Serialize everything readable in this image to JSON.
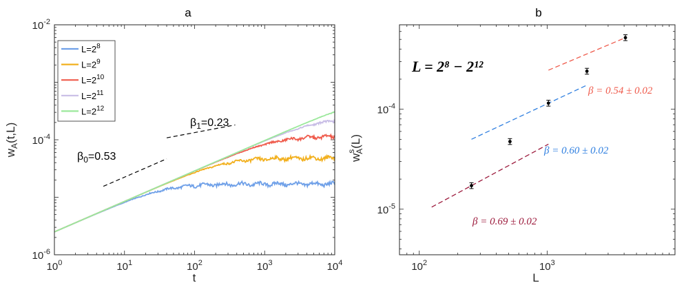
{
  "chart_data": [
    {
      "panel": "a",
      "type": "line",
      "title": "a",
      "xlabel": "t",
      "ylabel": "w_A(t,L)",
      "xscale": "log",
      "yscale": "log",
      "xlim": [
        1,
        10000
      ],
      "ylim": [
        1e-06,
        0.01
      ],
      "xticks": [
        {
          "value": 1,
          "base": "10",
          "exp": "0"
        },
        {
          "value": 10,
          "base": "10",
          "exp": "1"
        },
        {
          "value": 100,
          "base": "10",
          "exp": "2"
        },
        {
          "value": 1000,
          "base": "10",
          "exp": "3"
        },
        {
          "value": 10000,
          "base": "10",
          "exp": "4"
        }
      ],
      "yticks": [
        {
          "value": 1e-06,
          "base": "10",
          "exp": "-6"
        },
        {
          "value": 0.0001,
          "base": "10",
          "exp": "-4"
        },
        {
          "value": 0.01,
          "base": "10",
          "exp": "-2"
        }
      ],
      "legend_position": "top-left",
      "series": [
        {
          "name": "L=2^8",
          "label_base": "L=2",
          "label_exp": "8",
          "color": "#6fa0e8",
          "w0": 2.5e-06,
          "beta": 0.53,
          "wsat": 1.7e-05
        },
        {
          "name": "L=2^9",
          "label_base": "L=2",
          "label_exp": "9",
          "color": "#f2b01e",
          "w0": 2.5e-06,
          "beta": 0.53,
          "wsat": 4.8e-05
        },
        {
          "name": "L=2^10",
          "label_base": "L=2",
          "label_exp": "10",
          "color": "#ef5b4c",
          "w0": 2.5e-06,
          "beta": 0.53,
          "wsat": 0.000115
        },
        {
          "name": "L=2^11",
          "label_base": "L=2",
          "label_exp": "11",
          "color": "#c8bde6",
          "w0": 2.5e-06,
          "beta": 0.53,
          "wsat": 0.00024
        },
        {
          "name": "L=2^12",
          "label_base": "L=2",
          "label_exp": "12",
          "color": "#9be89b",
          "w0": 2.5e-06,
          "beta": 0.53,
          "wsat": 0.00052
        }
      ],
      "fits": [
        {
          "name": "beta_0",
          "label_sym": "β",
          "label_sub": "0",
          "label_val": "=0.53",
          "exponent": 0.53,
          "x_range": [
            5,
            40
          ],
          "y_at_start": 1.55e-05
        },
        {
          "name": "beta_1",
          "label_sym": "β",
          "label_sub": "1",
          "label_val": "=0.23",
          "exponent": 0.23,
          "x_range": [
            40,
            380
          ],
          "y_at_start": 0.000108
        }
      ]
    },
    {
      "panel": "b",
      "type": "scatter",
      "title": "b",
      "xlabel": "L",
      "ylabel": "w_A^s(L)",
      "xscale": "log",
      "yscale": "log",
      "xlim": [
        70,
        10000
      ],
      "ylim": [
        3.5e-06,
        0.0007
      ],
      "xticks": [
        {
          "value": 100,
          "base": "10",
          "exp": "2"
        },
        {
          "value": 1000,
          "base": "10",
          "exp": "3"
        }
      ],
      "yticks": [
        {
          "value": 1e-05,
          "base": "10",
          "exp": "-5"
        },
        {
          "value": 0.0001,
          "base": "10",
          "exp": "-4"
        }
      ],
      "range_label": "L = 2⁸ − 2¹²",
      "points": [
        {
          "x": 256,
          "y": 1.72e-05
        },
        {
          "x": 512,
          "y": 4.75e-05
        },
        {
          "x": 1024,
          "y": 0.000115
        },
        {
          "x": 2048,
          "y": 0.00024
        },
        {
          "x": 4096,
          "y": 0.00052
        }
      ],
      "fits": [
        {
          "label": "β = 0.69 ± 0.02",
          "exponent": 0.69,
          "color": "#9c1a3c",
          "x_range": [
            125,
            1024
          ],
          "anchor": [
            256,
            1.72e-05
          ]
        },
        {
          "label": "β = 0.60 ± 0.02",
          "exponent": 0.6,
          "color": "#2f7fe0",
          "x_range": [
            256,
            2048
          ],
          "anchor": [
            1024,
            0.000115
          ]
        },
        {
          "label": "β = 0.54 ± 0.02",
          "exponent": 0.54,
          "color": "#ef5b4c",
          "x_range": [
            1024,
            4096
          ],
          "anchor": [
            4096,
            0.00052
          ]
        }
      ]
    }
  ]
}
